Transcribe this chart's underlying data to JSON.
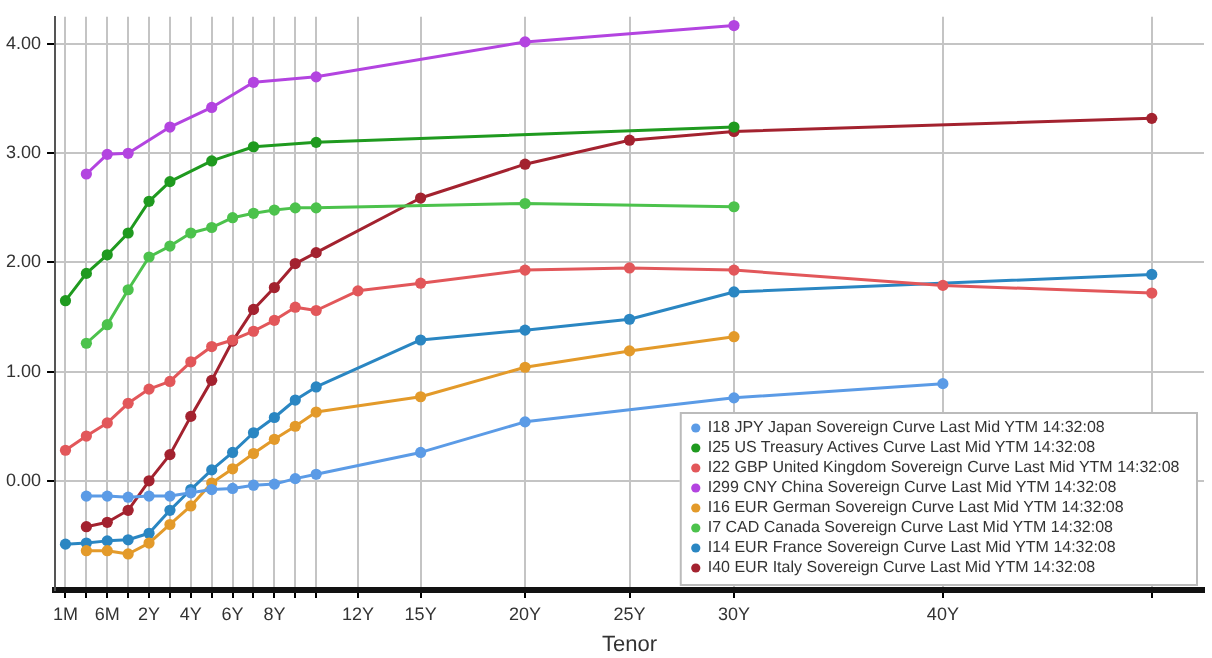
{
  "chart_data": {
    "type": "line",
    "xlabel": "Tenor",
    "ylim": [
      -1,
      4.25
    ],
    "categories": [
      "1M",
      null,
      "6M",
      null,
      "2Y",
      null,
      "4Y",
      null,
      "6Y",
      null,
      "8Y",
      null,
      null,
      null,
      "12Y",
      null,
      null,
      "15Y",
      null,
      null,
      null,
      null,
      "20Y",
      null,
      null,
      null,
      null,
      "25Y",
      null,
      null,
      null,
      null,
      "30Y",
      null,
      null,
      null,
      null,
      null,
      null,
      null,
      null,
      null,
      "40Y",
      null,
      null,
      null,
      null,
      null,
      null,
      null,
      null,
      null,
      null,
      null,
      null
    ],
    "yticks": [
      {
        "value": 0,
        "label": "0.00"
      },
      {
        "value": 1,
        "label": "1.00"
      },
      {
        "value": 2,
        "label": "2.00"
      },
      {
        "value": 3,
        "label": "3.00"
      },
      {
        "value": 4,
        "label": "4.00"
      }
    ],
    "grid": true,
    "legend": "bottom right",
    "marker": "circle",
    "line_style": "solid",
    "series": [
      {
        "name": "I18 JPY Japan Sovereign Curve Last Mid YTM 14:32:08",
        "color": "#5b9be6",
        "values": [
          null,
          -0.14,
          -0.14,
          -0.15,
          -0.14,
          -0.14,
          -0.11,
          -0.08,
          -0.07,
          -0.04,
          -0.03,
          0.02,
          0.06,
          null,
          null,
          null,
          null,
          0.26,
          null,
          null,
          null,
          null,
          0.54,
          null,
          null,
          null,
          null,
          null,
          null,
          null,
          null,
          null,
          0.76,
          null,
          null,
          null,
          null,
          null,
          null,
          null,
          null,
          null,
          0.89,
          null,
          null,
          null,
          null,
          null,
          null,
          null,
          null,
          null,
          null,
          null,
          null
        ]
      },
      {
        "name": "I25 US Treasury Actives Curve Last Mid YTM 14:32:08",
        "color": "#1f9a1f",
        "values": [
          1.65,
          1.9,
          2.07,
          2.27,
          2.56,
          2.74,
          null,
          2.93,
          null,
          3.06,
          null,
          null,
          3.1,
          null,
          null,
          null,
          null,
          null,
          null,
          null,
          null,
          null,
          null,
          null,
          null,
          null,
          null,
          null,
          null,
          null,
          null,
          null,
          3.24,
          null,
          null,
          null,
          null,
          null,
          null,
          null,
          null,
          null,
          null,
          null,
          null,
          null,
          null,
          null,
          null,
          null,
          null,
          null,
          null,
          null,
          null
        ]
      },
      {
        "name": "I22 GBP United Kingdom Sovereign Curve Last Mid YTM 14:32:08",
        "color": "#e2575a",
        "values": [
          0.28,
          0.41,
          0.53,
          0.71,
          0.84,
          0.91,
          1.09,
          1.23,
          1.29,
          1.37,
          1.47,
          1.59,
          1.56,
          null,
          1.74,
          null,
          null,
          1.81,
          null,
          null,
          null,
          null,
          1.93,
          null,
          null,
          null,
          null,
          1.95,
          null,
          null,
          null,
          null,
          1.93,
          null,
          null,
          null,
          null,
          null,
          null,
          null,
          null,
          null,
          1.79,
          null,
          null,
          null,
          null,
          null,
          null,
          null,
          null,
          null,
          1.72,
          null,
          null
        ]
      },
      {
        "name": "I299 CNY China Sovereign Curve Last Mid YTM 14:32:08",
        "color": "#b344e0",
        "values": [
          null,
          2.81,
          2.99,
          3.0,
          null,
          3.24,
          null,
          3.42,
          null,
          3.65,
          null,
          null,
          3.7,
          null,
          null,
          null,
          null,
          null,
          null,
          null,
          null,
          null,
          4.02,
          null,
          null,
          null,
          null,
          null,
          null,
          null,
          null,
          null,
          4.17,
          null,
          null,
          null,
          null,
          null,
          null,
          null,
          null,
          null,
          null,
          null,
          null,
          null,
          null,
          null,
          null,
          null,
          null,
          null,
          null,
          null,
          null
        ]
      },
      {
        "name": "I16 EUR German Sovereign Curve Last Mid YTM 14:32:08",
        "color": "#e39a2a",
        "values": [
          null,
          -0.64,
          -0.64,
          -0.67,
          -0.57,
          -0.4,
          -0.23,
          -0.02,
          0.11,
          0.25,
          0.38,
          0.5,
          0.63,
          null,
          null,
          null,
          null,
          0.77,
          null,
          null,
          null,
          null,
          1.04,
          null,
          null,
          null,
          null,
          1.19,
          null,
          null,
          null,
          null,
          1.32,
          null,
          null,
          null,
          null,
          null,
          null,
          null,
          null,
          null,
          null,
          null,
          null,
          null,
          null,
          null,
          null,
          null,
          null,
          null,
          null,
          null,
          null
        ]
      },
      {
        "name": "I7 CAD Canada Sovereign Curve Last Mid YTM 14:32:08",
        "color": "#4cc24c",
        "values": [
          null,
          1.26,
          1.43,
          1.75,
          2.05,
          2.15,
          2.27,
          2.32,
          2.41,
          2.45,
          2.48,
          2.5,
          2.5,
          null,
          null,
          null,
          null,
          null,
          null,
          null,
          null,
          null,
          2.54,
          null,
          null,
          null,
          null,
          null,
          null,
          null,
          null,
          null,
          2.51,
          null,
          null,
          null,
          null,
          null,
          null,
          null,
          null,
          null,
          null,
          null,
          null,
          null,
          null,
          null,
          null,
          null,
          null,
          null,
          null,
          null,
          null
        ]
      },
      {
        "name": "I14 EUR France Sovereign Curve Last Mid YTM 14:32:08",
        "color": "#2a86c2",
        "values": [
          -0.58,
          -0.57,
          -0.55,
          -0.54,
          -0.48,
          -0.27,
          -0.08,
          0.1,
          0.26,
          0.44,
          0.58,
          0.74,
          0.86,
          null,
          null,
          null,
          null,
          1.29,
          null,
          null,
          null,
          null,
          1.38,
          null,
          null,
          null,
          null,
          1.48,
          null,
          null,
          null,
          null,
          1.73,
          null,
          null,
          null,
          null,
          null,
          null,
          null,
          null,
          null,
          null,
          null,
          null,
          null,
          null,
          null,
          null,
          null,
          null,
          null,
          1.89,
          null,
          null
        ]
      },
      {
        "name": "I40 EUR Italy Sovereign Curve Last Mid YTM 14:32:08",
        "color": "#a3222f",
        "values": [
          null,
          -0.42,
          -0.38,
          -0.27,
          0.0,
          0.24,
          0.59,
          0.92,
          1.28,
          1.57,
          1.77,
          1.99,
          2.09,
          null,
          null,
          null,
          null,
          2.59,
          null,
          null,
          null,
          null,
          2.9,
          null,
          null,
          null,
          null,
          3.12,
          null,
          null,
          null,
          null,
          3.2,
          null,
          null,
          null,
          null,
          null,
          null,
          null,
          null,
          null,
          null,
          null,
          null,
          null,
          null,
          null,
          null,
          null,
          null,
          null,
          3.32,
          null,
          null
        ]
      }
    ]
  }
}
